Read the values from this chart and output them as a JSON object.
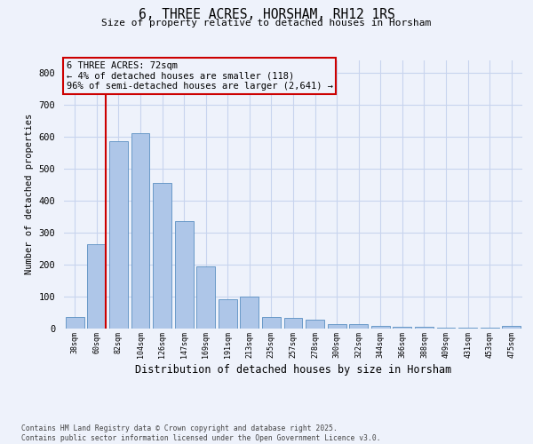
{
  "title": "6, THREE ACRES, HORSHAM, RH12 1RS",
  "subtitle": "Size of property relative to detached houses in Horsham",
  "xlabel": "Distribution of detached houses by size in Horsham",
  "ylabel": "Number of detached properties",
  "footer_line1": "Contains HM Land Registry data © Crown copyright and database right 2025.",
  "footer_line2": "Contains public sector information licensed under the Open Government Licence v3.0.",
  "annotation_line1": "6 THREE ACRES: 72sqm",
  "annotation_line2": "← 4% of detached houses are smaller (118)",
  "annotation_line3": "96% of semi-detached houses are larger (2,641) →",
  "bar_labels": [
    "38sqm",
    "60sqm",
    "82sqm",
    "104sqm",
    "126sqm",
    "147sqm",
    "169sqm",
    "191sqm",
    "213sqm",
    "235sqm",
    "257sqm",
    "278sqm",
    "300sqm",
    "322sqm",
    "344sqm",
    "366sqm",
    "388sqm",
    "409sqm",
    "431sqm",
    "453sqm",
    "475sqm"
  ],
  "bar_values": [
    35,
    265,
    585,
    610,
    455,
    335,
    195,
    93,
    100,
    35,
    32,
    28,
    14,
    14,
    8,
    5,
    5,
    3,
    3,
    3,
    8
  ],
  "bar_color": "#aec6e8",
  "bar_edge_color": "#5a8fc2",
  "red_line_index": 1,
  "red_line_color": "#cc0000",
  "annotation_box_color": "#cc0000",
  "background_color": "#eef2fb",
  "grid_color": "#c8d4ee",
  "ylim": [
    0,
    840
  ],
  "yticks": [
    0,
    100,
    200,
    300,
    400,
    500,
    600,
    700,
    800
  ]
}
